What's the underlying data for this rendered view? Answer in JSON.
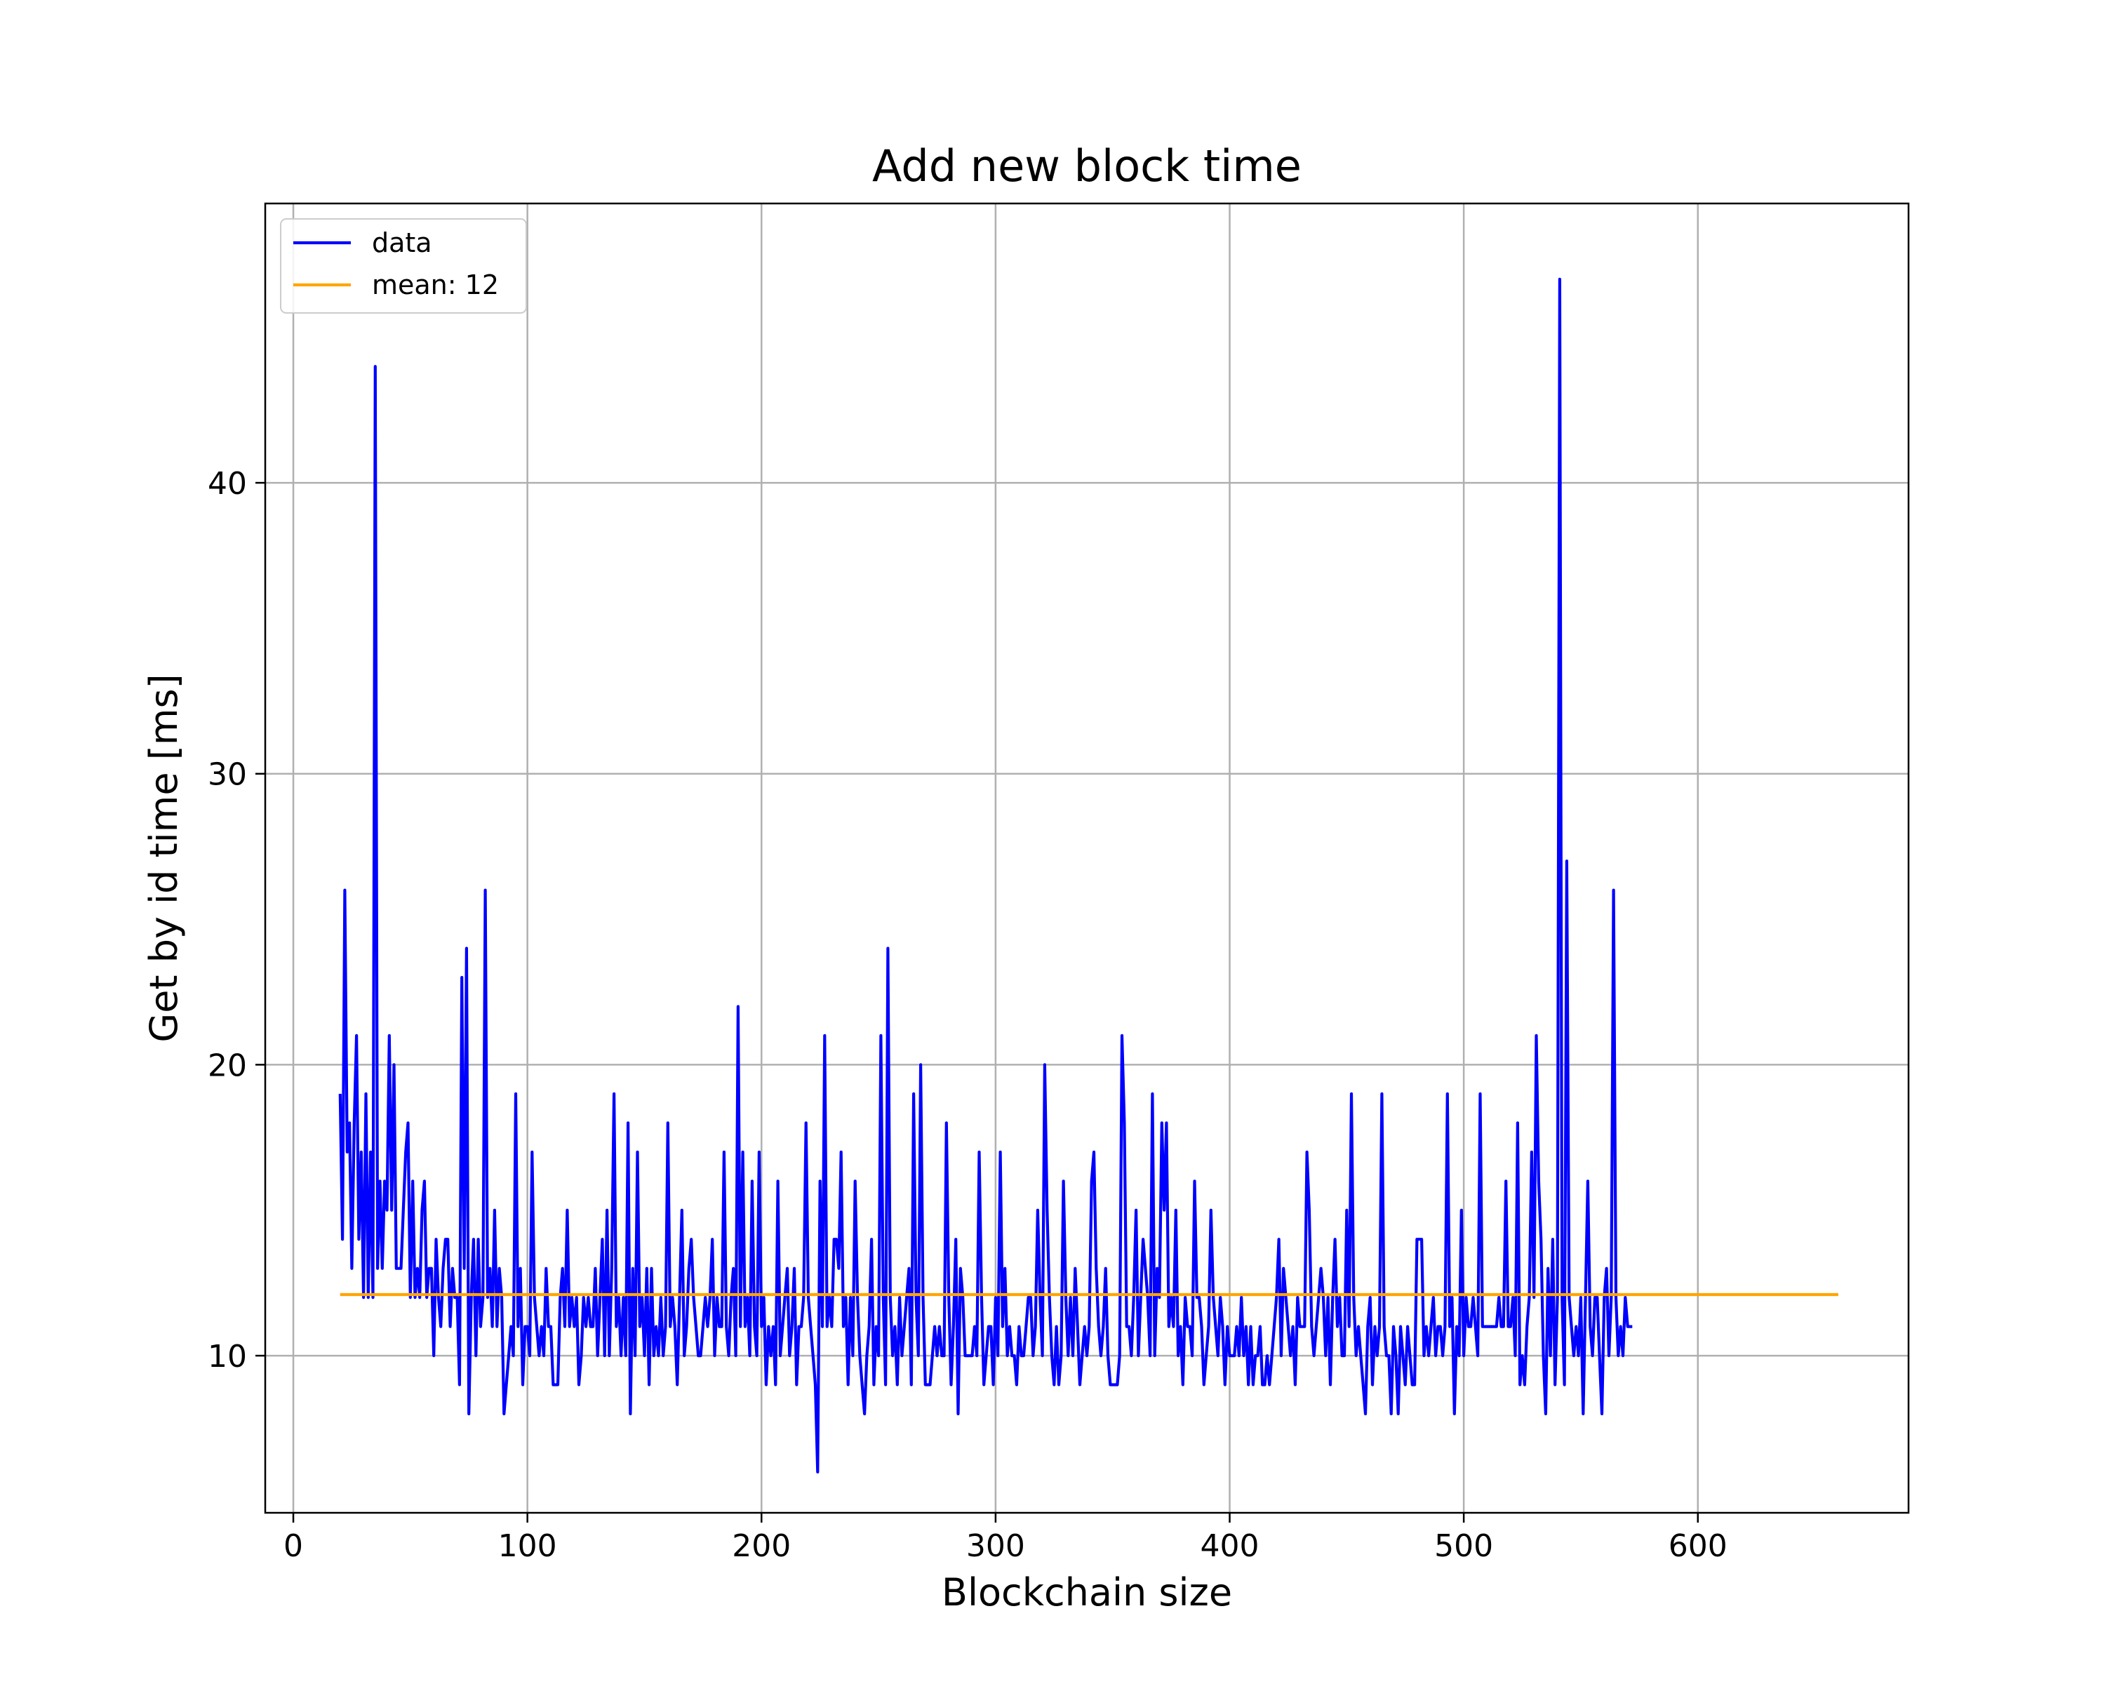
{
  "chart_data": {
    "type": "line",
    "title": "Add new block time",
    "xlabel": "Blockchain size",
    "ylabel": "Get by id time [ms]",
    "xlim": [
      -12,
      690
    ],
    "ylim": [
      4.6,
      49.6
    ],
    "xticks": [
      0,
      100,
      200,
      300,
      400,
      500,
      600
    ],
    "yticks": [
      10,
      20,
      30,
      40
    ],
    "grid": true,
    "legend_position": "top-left",
    "series": [
      {
        "name": "data",
        "color": "#0000ff",
        "x_start": 20,
        "x_step": 1,
        "values": [
          19,
          14,
          26,
          17,
          18,
          13,
          18,
          21,
          14,
          17,
          12,
          19,
          12,
          17,
          12,
          44,
          13,
          16,
          13,
          16,
          15,
          21,
          15,
          20,
          13,
          13,
          13,
          15,
          17,
          18,
          12,
          16,
          12,
          13,
          12,
          15,
          16,
          12,
          13,
          13,
          10,
          14,
          12,
          11,
          13,
          14,
          14,
          11,
          13,
          12,
          12,
          9,
          23,
          13,
          24,
          8,
          12,
          14,
          10,
          14,
          11,
          12,
          26,
          12,
          13,
          11,
          15,
          11,
          13,
          12,
          8,
          9,
          10,
          11,
          10,
          19,
          11,
          13,
          9,
          11,
          11,
          10,
          17,
          12,
          11,
          10,
          11,
          10,
          13,
          11,
          11,
          9,
          9,
          9,
          12,
          13,
          11,
          15,
          11,
          12,
          11,
          12,
          9,
          10,
          12,
          11,
          12,
          11,
          11,
          13,
          10,
          12,
          14,
          10,
          15,
          10,
          13,
          19,
          11,
          12,
          10,
          12,
          10,
          18,
          8,
          13,
          10,
          17,
          11,
          12,
          10,
          13,
          9,
          13,
          10,
          11,
          10,
          12,
          10,
          11,
          18,
          11,
          12,
          11,
          9,
          12,
          15,
          10,
          11,
          13,
          14,
          12,
          11,
          10,
          10,
          11,
          12,
          11,
          12,
          14,
          10,
          12,
          11,
          11,
          17,
          11,
          10,
          12,
          13,
          10,
          22,
          11,
          17,
          11,
          12,
          10,
          16,
          11,
          10,
          17,
          11,
          12,
          9,
          11,
          10,
          11,
          9,
          16,
          10,
          11,
          12,
          13,
          10,
          11,
          13,
          9,
          11,
          11,
          12,
          18,
          12,
          11,
          10,
          9,
          6,
          16,
          11,
          21,
          11,
          12,
          11,
          14,
          14,
          13,
          17,
          11,
          12,
          9,
          12,
          10,
          16,
          12,
          10,
          9,
          8,
          10,
          11,
          14,
          9,
          11,
          10,
          21,
          12,
          9,
          24,
          12,
          10,
          11,
          9,
          12,
          10,
          11,
          12,
          13,
          9,
          19,
          12,
          10,
          20,
          12,
          9,
          9,
          9,
          10,
          11,
          10,
          11,
          10,
          10,
          18,
          12,
          9,
          11,
          14,
          8,
          13,
          12,
          10,
          10,
          10,
          10,
          11,
          10,
          17,
          12,
          9,
          10,
          11,
          11,
          9,
          12,
          10,
          17,
          11,
          13,
          10,
          11,
          10,
          10,
          9,
          11,
          10,
          10,
          11,
          12,
          12,
          10,
          11,
          15,
          12,
          10,
          20,
          15,
          12,
          10,
          9,
          11,
          9,
          10,
          16,
          12,
          10,
          12,
          10,
          13,
          11,
          9,
          10,
          11,
          10,
          11,
          16,
          17,
          13,
          11,
          10,
          11,
          13,
          10,
          9,
          9,
          9,
          9,
          10,
          21,
          18,
          11,
          11,
          10,
          12,
          15,
          10,
          12,
          14,
          13,
          12,
          10,
          19,
          10,
          13,
          12,
          18,
          15,
          18,
          11,
          12,
          11,
          15,
          10,
          11,
          9,
          12,
          11,
          11,
          10,
          16,
          12,
          12,
          11,
          9,
          10,
          11,
          15,
          12,
          11,
          10,
          12,
          11,
          9,
          11,
          10,
          10,
          10,
          11,
          10,
          12,
          10,
          11,
          9,
          11,
          9,
          10,
          10,
          11,
          9,
          9,
          10,
          9,
          10,
          11,
          12,
          14,
          10,
          13,
          12,
          11,
          10,
          11,
          9,
          12,
          11,
          11,
          11,
          17,
          15,
          11,
          10,
          11,
          12,
          13,
          12,
          10,
          12,
          9,
          12,
          14,
          11,
          12,
          10,
          10,
          15,
          11,
          19,
          12,
          10,
          11,
          10,
          9,
          8,
          11,
          12,
          9,
          11,
          10,
          11,
          19,
          11,
          10,
          10,
          8,
          11,
          10,
          8,
          11,
          10,
          9,
          11,
          10,
          9,
          9,
          14,
          14,
          14,
          10,
          11,
          10,
          11,
          12,
          10,
          11,
          11,
          10,
          11,
          19,
          11,
          12,
          8,
          11,
          10,
          15,
          10,
          12,
          11,
          11,
          12,
          11,
          10,
          19,
          11,
          11,
          11,
          11,
          11,
          11,
          11,
          12,
          11,
          11,
          16,
          11,
          11,
          12,
          10,
          18,
          9,
          10,
          9,
          11,
          12,
          17,
          12,
          21,
          16,
          14,
          10,
          8,
          13,
          10,
          14,
          9,
          12,
          47,
          12,
          9,
          27,
          12,
          11,
          10,
          11,
          10,
          12,
          8,
          12,
          16,
          11,
          10,
          12,
          12,
          10,
          8,
          12,
          13,
          10,
          12,
          26,
          12,
          10,
          11,
          10,
          12,
          11,
          11,
          11
        ]
      },
      {
        "name": "mean: 12",
        "color": "#ffa500",
        "x": [
          20,
          660
        ],
        "y": [
          12.1,
          12.1
        ]
      }
    ],
    "legend": [
      "data",
      "mean: 12"
    ]
  }
}
